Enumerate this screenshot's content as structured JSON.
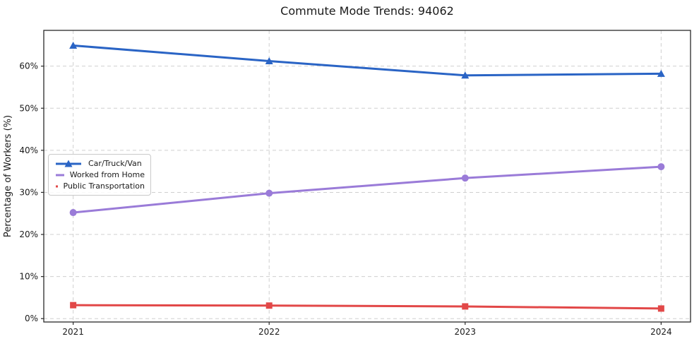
{
  "title": "Commute Mode Trends: 94062",
  "colors": {
    "car_truck_van": "#2a64c5",
    "worked_from_home": "#9a7bd8",
    "public_transportation": "#e24848",
    "grid": "#cfcfcf",
    "spine": "#2a2a2a",
    "background": "#ffffff",
    "text": "#1a1a1a"
  },
  "chart_data": {
    "type": "line",
    "title": "Commute Mode Trends: 94062",
    "xlabel": "",
    "ylabel": "Percentage of Workers (%)",
    "x": [
      2021,
      2022,
      2023,
      2024
    ],
    "x_tick_labels": [
      "2021",
      "2022",
      "2023",
      "2024"
    ],
    "y_ticks": [
      0,
      10,
      20,
      30,
      40,
      50,
      60
    ],
    "y_tick_labels": [
      "0%",
      "10%",
      "20%",
      "30%",
      "40%",
      "50%",
      "60%"
    ],
    "xlim": [
      2020.85,
      2024.15
    ],
    "ylim": [
      -0.8,
      68.5
    ],
    "grid": true,
    "grid_style": "dashed",
    "legend_position": "center-left",
    "series": [
      {
        "name": "Car/Truck/Van",
        "marker": "triangle",
        "color": "#2a64c5",
        "values": [
          64.9,
          61.2,
          57.8,
          58.2
        ]
      },
      {
        "name": "Worked from Home",
        "marker": "circle",
        "color": "#9a7bd8",
        "values": [
          25.2,
          29.8,
          33.4,
          36.1
        ]
      },
      {
        "name": "Public Transportation",
        "marker": "square",
        "color": "#e24848",
        "values": [
          3.2,
          3.1,
          2.9,
          2.4
        ]
      }
    ]
  }
}
